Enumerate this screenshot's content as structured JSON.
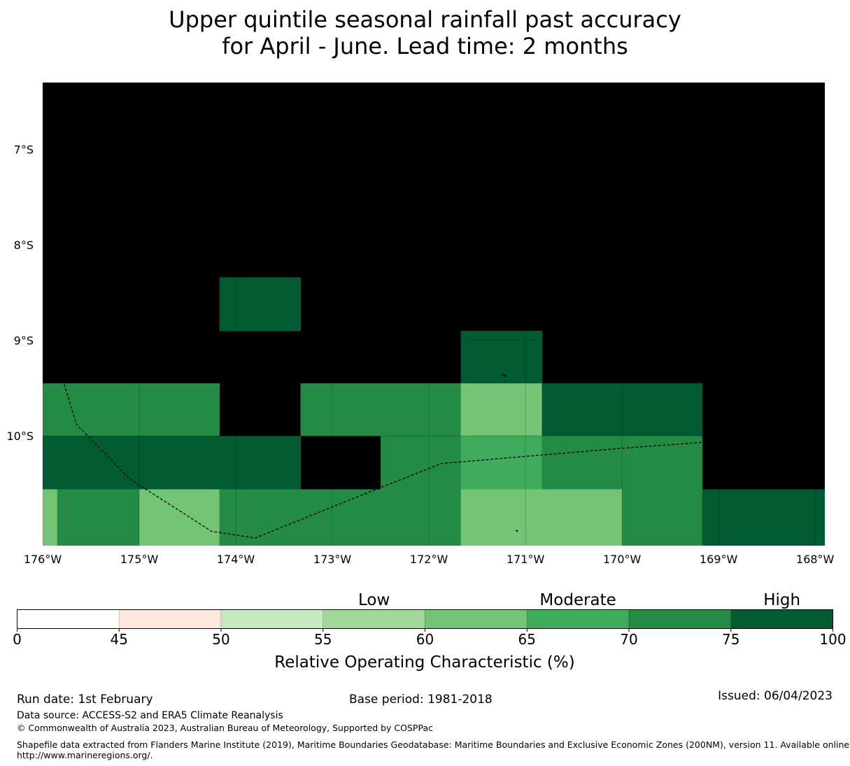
{
  "title": {
    "line1": "Upper quintile seasonal rainfall past accuracy",
    "line2": "for April - June. Lead time: 2 months"
  },
  "map": {
    "lon_range": [
      -176.0,
      -167.9
    ],
    "lat_range": [
      -11.15,
      -6.3
    ],
    "lon_ticks": [
      {
        "value": -176,
        "label": "176°W"
      },
      {
        "value": -175,
        "label": "175°W"
      },
      {
        "value": -174,
        "label": "174°W"
      },
      {
        "value": -173,
        "label": "173°W"
      },
      {
        "value": -172,
        "label": "172°W"
      },
      {
        "value": -171,
        "label": "171°W"
      },
      {
        "value": -170,
        "label": "170°W"
      },
      {
        "value": -169,
        "label": "169°W"
      },
      {
        "value": -168,
        "label": "168°W"
      }
    ],
    "lat_ticks": [
      {
        "value": -7,
        "label": "7°S"
      },
      {
        "value": -8,
        "label": "8°S"
      },
      {
        "value": -9,
        "label": "9°S"
      },
      {
        "value": -10,
        "label": "10°S"
      }
    ],
    "background_class": 8,
    "cells": [
      {
        "lon0": -174.17,
        "lon1": -173.33,
        "lat0": -8.34,
        "lat1": -8.9,
        "class": 7
      },
      {
        "lon0": -171.67,
        "lon1": -170.83,
        "lat0": -8.9,
        "lat1": -9.45,
        "class": 7
      },
      {
        "lon0": -176.0,
        "lon1": -174.17,
        "lat0": -9.45,
        "lat1": -10.0,
        "class": 6
      },
      {
        "lon0": -173.33,
        "lon1": -171.67,
        "lat0": -9.45,
        "lat1": -10.0,
        "class": 6
      },
      {
        "lon0": -171.67,
        "lon1": -170.83,
        "lat0": -9.45,
        "lat1": -10.0,
        "class": 4
      },
      {
        "lon0": -170.83,
        "lon1": -169.17,
        "lat0": -9.45,
        "lat1": -10.0,
        "class": 7
      },
      {
        "lon0": -176.0,
        "lon1": -173.33,
        "lat0": -10.0,
        "lat1": -10.56,
        "class": 7
      },
      {
        "lon0": -172.5,
        "lon1": -171.67,
        "lat0": -10.0,
        "lat1": -10.56,
        "class": 6
      },
      {
        "lon0": -171.67,
        "lon1": -170.83,
        "lat0": -10.0,
        "lat1": -10.56,
        "class": 5
      },
      {
        "lon0": -170.83,
        "lon1": -169.17,
        "lat0": -10.0,
        "lat1": -10.56,
        "class": 6
      },
      {
        "lon0": -176.0,
        "lon1": -175.85,
        "lat0": -10.56,
        "lat1": -11.15,
        "class": 4
      },
      {
        "lon0": -175.85,
        "lon1": -175.0,
        "lat0": -10.56,
        "lat1": -11.15,
        "class": 6
      },
      {
        "lon0": -175.0,
        "lon1": -174.17,
        "lat0": -10.56,
        "lat1": -11.15,
        "class": 4
      },
      {
        "lon0": -174.17,
        "lon1": -171.67,
        "lat0": -10.56,
        "lat1": -11.15,
        "class": 6
      },
      {
        "lon0": -171.67,
        "lon1": -170.0,
        "lat0": -10.56,
        "lat1": -11.15,
        "class": 4
      },
      {
        "lon0": -170.0,
        "lon1": -169.17,
        "lat0": -10.56,
        "lat1": -11.15,
        "class": 6
      },
      {
        "lon0": -169.17,
        "lon1": -167.9,
        "lat0": -10.56,
        "lat1": -11.15,
        "class": 7
      }
    ],
    "eez_boundary": [
      [
        -173.22,
        -6.47
      ],
      [
        -171.58,
        -6.61
      ],
      [
        -170.58,
        -6.9
      ],
      [
        -168.92,
        -6.89
      ],
      [
        -168.5,
        -7.3
      ],
      [
        -168.2,
        -7.75
      ],
      [
        -168.0,
        -8.25
      ],
      [
        -168.2,
        -8.98
      ],
      [
        -168.53,
        -10.02
      ],
      [
        -170.0,
        -10.13
      ],
      [
        -171.17,
        -10.23
      ],
      [
        -171.87,
        -10.29
      ],
      [
        -172.77,
        -10.65
      ],
      [
        -173.8,
        -11.07
      ],
      [
        -174.25,
        -11.0
      ],
      [
        -175.1,
        -10.45
      ],
      [
        -175.65,
        -9.88
      ],
      [
        -175.93,
        -8.96
      ],
      [
        -175.9,
        -8.12
      ],
      [
        -175.8,
        -7.8
      ],
      [
        -174.6,
        -7.0
      ],
      [
        -173.22,
        -6.47
      ]
    ],
    "islands": [
      [
        [
          -172.51,
          -8.54
        ],
        [
          -172.47,
          -8.58
        ]
      ],
      [
        [
          -171.82,
          -9.14
        ],
        [
          -171.8,
          -9.2
        ]
      ],
      [
        [
          -171.24,
          -9.35
        ],
        [
          -171.2,
          -9.38
        ]
      ],
      [
        [
          -171.1,
          -10.99
        ],
        [
          -171.08,
          -11.0
        ]
      ]
    ]
  },
  "colorbar": {
    "title": "Relative Operating Characteristic (%)",
    "tick_labels": [
      "0",
      "45",
      "50",
      "55",
      "60",
      "65",
      "70",
      "75",
      "100"
    ],
    "colors": [
      "#ffffff",
      "#fee8de",
      "#c7e9c0",
      "#a1d99b",
      "#74c476",
      "#41ab5d",
      "#238b45",
      "#005a32"
    ],
    "category_labels": [
      {
        "text": "Low",
        "class": 3
      },
      {
        "text": "Moderate",
        "class": 5
      },
      {
        "text": "High",
        "class": 7
      }
    ]
  },
  "footer": {
    "run_date": "Run date: 1st February",
    "base_period": "Base period: 1981-2018",
    "issued": "Issued: 06/04/2023",
    "data_source": "Data source: ACCESS-S2 and ERA5 Climate Reanalysis",
    "copyright": "© Commonwealth of Australia 2023, Australian Bureau of Meteorology, Supported by COSPPac",
    "shapefile_line1": "Shapefile data extracted from Flanders Marine Institute (2019), Maritime Boundaries Geodatabase: Maritime Boundaries and Exclusive Economic Zones (200NM), version 11. Available online at",
    "shapefile_line2": "http://www.marineregions.org/."
  }
}
